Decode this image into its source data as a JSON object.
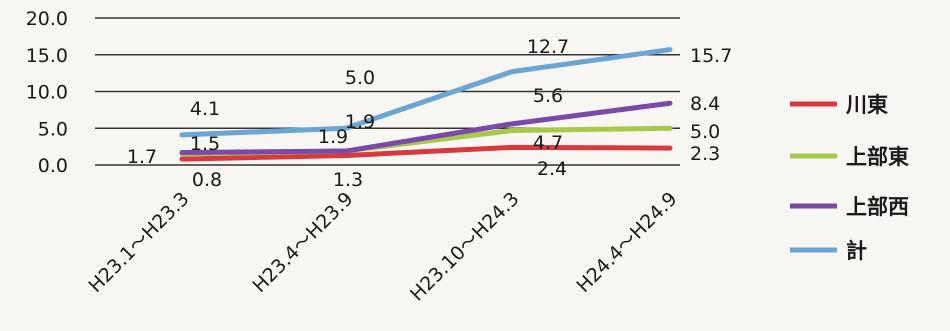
{
  "chart_data": {
    "type": "line",
    "categories": [
      "H23.1～H23.3",
      "H23.4～H23.9",
      "H23.10～H24.3",
      "H24.4～H24.9"
    ],
    "ylim": [
      0,
      20
    ],
    "yticks": [
      "0.0",
      "5.0",
      "10.0",
      "15.0",
      "20.0"
    ],
    "grid": true,
    "legend_position": "right",
    "series": [
      {
        "name": "川東",
        "color": "#d9383f",
        "values": [
          0.8,
          1.3,
          2.4,
          2.3
        ],
        "labels": [
          "0.8",
          "1.3",
          "2.4",
          "2.3"
        ]
      },
      {
        "name": "上部東",
        "color": "#a7c94a",
        "values": [
          1.5,
          1.9,
          4.7,
          5.0
        ],
        "labels": [
          "1.5",
          "1.9",
          "4.7",
          "5.0"
        ]
      },
      {
        "name": "上部西",
        "color": "#7b4aa8",
        "values": [
          1.7,
          1.9,
          5.6,
          8.4
        ],
        "labels": [
          "1.7",
          "1.9",
          "5.6",
          "8.4"
        ]
      },
      {
        "name": "計",
        "color": "#6aa5d3",
        "values": [
          4.1,
          5.0,
          12.7,
          15.7
        ],
        "labels": [
          "4.1",
          "5.0",
          "12.7",
          "15.7"
        ]
      }
    ]
  }
}
